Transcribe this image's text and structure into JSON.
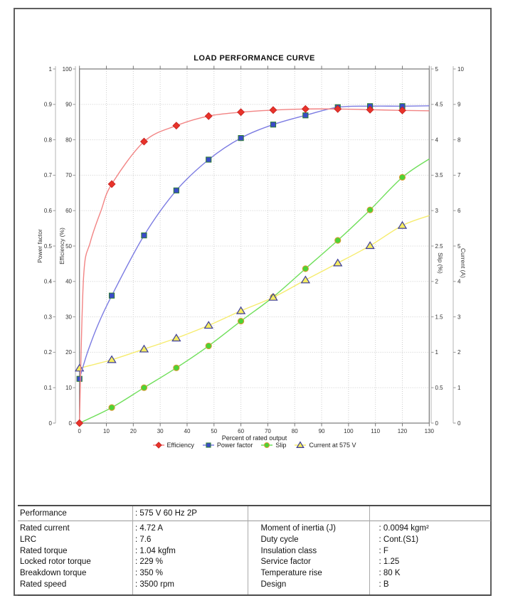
{
  "chart_data": {
    "type": "line",
    "title": "LOAD PERFORMANCE CURVE",
    "xlabel": "Percent of rated output",
    "x_range": [
      0,
      130
    ],
    "x_ticks": [
      0,
      10,
      20,
      30,
      40,
      50,
      60,
      70,
      80,
      90,
      100,
      110,
      120,
      130
    ],
    "grid": "dotted",
    "legend_position": "bottom",
    "legend_order": [
      "Efficiency",
      "Power factor",
      "Slip",
      "Current at 575 V"
    ],
    "axes": [
      {
        "id": "power_factor",
        "title": "Power factor",
        "side": "left-outer",
        "range": [
          0,
          1
        ],
        "tick_labels": [
          "1",
          "0.9",
          "0.8",
          "0.7",
          "0.6",
          "0.5",
          "0.4",
          "0.3",
          "0.2",
          "0.1",
          "0"
        ]
      },
      {
        "id": "efficiency",
        "title": "Efficiency (%)",
        "side": "left-inner",
        "range": [
          0,
          100
        ],
        "tick_labels": [
          "100",
          "90",
          "80",
          "70",
          "60",
          "50",
          "40",
          "30",
          "20",
          "10",
          "0"
        ]
      },
      {
        "id": "slip",
        "title": "Slip (%)",
        "side": "right-inner",
        "range": [
          0,
          5
        ],
        "tick_labels": [
          "5",
          "4.5",
          "4",
          "3.5",
          "3",
          "2.5",
          "2",
          "1.5",
          "1",
          "0.5",
          "0"
        ]
      },
      {
        "id": "current",
        "title": "Current (A)",
        "side": "right-outer",
        "range": [
          0,
          10
        ],
        "tick_labels": [
          "10",
          "9",
          "8",
          "7",
          "6",
          "5",
          "4",
          "3",
          "2",
          "1",
          "0"
        ]
      }
    ],
    "series": [
      {
        "name": "Slip",
        "axis": "slip",
        "line_color": "#6fdf5a",
        "marker": "circle",
        "marker_fill": "#4cd335",
        "marker_stroke": "#dd9933",
        "skip_first_marker": true,
        "x": [
          0,
          12,
          24,
          36,
          48,
          60,
          72,
          84,
          96,
          108,
          120
        ],
        "values": [
          0,
          0.22,
          0.5,
          0.78,
          1.09,
          1.44,
          1.78,
          2.18,
          2.58,
          3.01,
          3.47
        ],
        "curve_helpers": [],
        "curve_end": [
          130,
          3.73
        ]
      },
      {
        "name": "Current at 575 V",
        "axis": "current",
        "line_color": "#f6ec6e",
        "marker": "triangle",
        "marker_fill": "#f5ec60",
        "marker_stroke": "#3d3d99",
        "skip_first_marker": false,
        "x": [
          0,
          12,
          24,
          36,
          48,
          60,
          72,
          84,
          96,
          108,
          120
        ],
        "values": [
          1.55,
          1.79,
          2.09,
          2.4,
          2.76,
          3.17,
          3.55,
          4.04,
          4.52,
          5.01,
          5.58
        ],
        "curve_helpers": [],
        "curve_end": [
          130,
          5.86
        ]
      },
      {
        "name": "Power factor",
        "axis": "power_factor",
        "line_color": "#7b7be2",
        "marker": "square",
        "marker_fill": "#3a4bc8",
        "marker_stroke": "#2e7d32",
        "skip_first_marker": false,
        "x": [
          0,
          12,
          24,
          36,
          48,
          60,
          72,
          84,
          96,
          108,
          120
        ],
        "values": [
          0.125,
          0.36,
          0.53,
          0.657,
          0.744,
          0.805,
          0.843,
          0.869,
          0.892,
          0.895,
          0.895
        ],
        "curve_helpers": [
          [
            3,
            0.2
          ],
          [
            7,
            0.28
          ]
        ],
        "curve_end": [
          130,
          0.896
        ]
      },
      {
        "name": "Efficiency",
        "axis": "efficiency",
        "line_color": "#f28484",
        "marker": "diamond",
        "marker_fill": "#e8332a",
        "marker_stroke": "#c42020",
        "skip_first_marker": false,
        "x": [
          0,
          12,
          24,
          36,
          48,
          60,
          72,
          84,
          96,
          108,
          120
        ],
        "values": [
          0,
          67.5,
          79.5,
          84,
          86.7,
          87.8,
          88.4,
          88.7,
          88.7,
          88.5,
          88.3
        ],
        "curve_helpers": [
          [
            1.5,
            41
          ],
          [
            4,
            51
          ],
          [
            8,
            60
          ]
        ],
        "curve_end": [
          130,
          88.2
        ]
      }
    ]
  },
  "table": {
    "colon": ":",
    "performance": {
      "label": "Performance",
      "value": "575 V 60 Hz 2P"
    },
    "left_rows": [
      {
        "label": "Rated current",
        "value": "4.72 A"
      },
      {
        "label": "LRC",
        "value": "7.6"
      },
      {
        "label": "Rated torque",
        "value": "1.04 kgfm"
      },
      {
        "label": "Locked rotor torque",
        "value": "229 %"
      },
      {
        "label": "Breakdown torque",
        "value": "350 %"
      },
      {
        "label": "Rated speed",
        "value": "3500 rpm"
      }
    ],
    "right_rows": [
      {
        "label": "Moment of inertia (J)",
        "value": "0.0094 kgm²"
      },
      {
        "label": "Duty cycle",
        "value": "Cont.(S1)"
      },
      {
        "label": "Insulation class",
        "value": "F"
      },
      {
        "label": "Service factor",
        "value": "1.25"
      },
      {
        "label": "Temperature rise",
        "value": "80 K"
      },
      {
        "label": "Design",
        "value": "B"
      }
    ]
  }
}
